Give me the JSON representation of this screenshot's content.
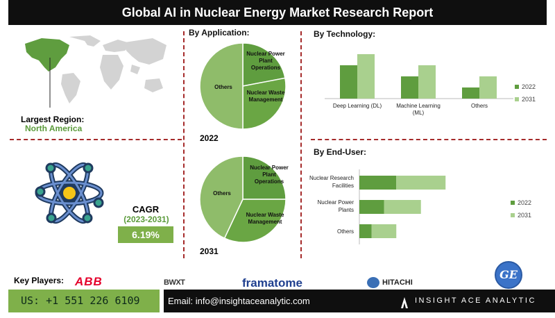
{
  "title": "Global AI in Nuclear Energy Market Research Report",
  "region": {
    "label": "Largest Region:",
    "value": "North America"
  },
  "cagr": {
    "label": "CAGR",
    "period": "(2023-2031)",
    "value": "6.19%"
  },
  "colors": {
    "dark_green": "#5f9d3f",
    "light_green": "#a9d08e",
    "mid_green": "#8fbc6a",
    "brand_green": "#7fb04a",
    "divider": "#a52a2a"
  },
  "key_players": {
    "label": "Key Players:",
    "logos": [
      "ABB",
      "BWXT",
      "framatome",
      "HITACHI",
      "GE"
    ]
  },
  "footer": {
    "phone": "US: +1 551 226 6109",
    "email": "Email: info@insightaceanalytic.com",
    "brand": "INSIGHT ACE ANALYTIC"
  },
  "chart_data": [
    {
      "type": "pie",
      "title": "By Application:",
      "year_label": "2022",
      "slices": [
        {
          "label": "Nuclear Power Plant Operations",
          "value": 22
        },
        {
          "label": "Nuclear Waste Management",
          "value": 28
        },
        {
          "label": "Others",
          "value": 50
        }
      ]
    },
    {
      "type": "pie",
      "year_label": "2031",
      "slices": [
        {
          "label": "Nuclear Power Plant Operations",
          "value": 25
        },
        {
          "label": "Nuclear Waste Management",
          "value": 32
        },
        {
          "label": "Others",
          "value": 43
        }
      ]
    },
    {
      "type": "bar",
      "title": "By Technology:",
      "categories": [
        "Deep Learning (DL)",
        "Machine Learning (ML)",
        "Others"
      ],
      "series": [
        {
          "name": "2022",
          "values": [
            48,
            32,
            16
          ]
        },
        {
          "name": "2031",
          "values": [
            64,
            48,
            32
          ]
        }
      ],
      "ylim": [
        0,
        70
      ],
      "legend": "right"
    },
    {
      "type": "bar",
      "orientation": "horizontal-stacked",
      "title": "By End-User:",
      "categories": [
        "Nuclear Research Facilities",
        "Nuclear Power Plants",
        "Others"
      ],
      "series": [
        {
          "name": "2022",
          "values": [
            60,
            40,
            20
          ]
        },
        {
          "name": "2031",
          "values": [
            80,
            60,
            40
          ]
        }
      ],
      "xlim": [
        0,
        160
      ],
      "legend": "right"
    }
  ]
}
